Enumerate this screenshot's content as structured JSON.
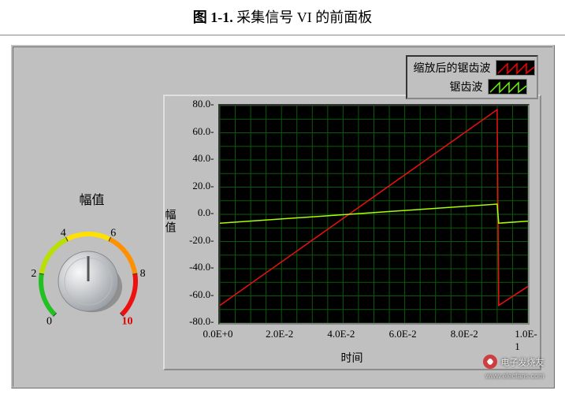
{
  "figure_caption": {
    "prefix": "图 1-1.",
    "text": " 采集信号 VI 的前面板"
  },
  "knob": {
    "label": "幅值",
    "min": 0,
    "max": 10,
    "ticks": [
      0,
      2,
      4,
      6,
      8,
      10
    ],
    "value": 5,
    "start_angle": -225,
    "end_angle": 45,
    "face_light": "#f8f8f8",
    "face_dark": "#9aa0a6",
    "arc_colors": [
      "#22c122",
      "#b8e000",
      "#ffe000",
      "#ff9000",
      "#ee1010"
    ],
    "tick_label_fontsize": 14
  },
  "legend": {
    "items": [
      {
        "label": "缩放后的锯齿波",
        "color": "#ff0000",
        "style": "sawtooth"
      },
      {
        "label": "锯齿波",
        "color": "#66ff00",
        "style": "sawtooth"
      }
    ]
  },
  "chart": {
    "type": "line",
    "xlabel": "时间",
    "ylabel": "幅值",
    "background_color": "#000000",
    "grid_color": "#0b5a0b",
    "grid_rows": 16,
    "grid_cols": 20,
    "label_fontsize": 14,
    "tick_fontsize": 13,
    "xlim": [
      0,
      0.1
    ],
    "ylim": [
      -80,
      80
    ],
    "xticks": [
      {
        "v": 0.0,
        "label": "0.0E+0"
      },
      {
        "v": 0.02,
        "label": "2.0E-2"
      },
      {
        "v": 0.04,
        "label": "4.0E-2"
      },
      {
        "v": 0.06,
        "label": "6.0E-2"
      },
      {
        "v": 0.08,
        "label": "8.0E-2"
      },
      {
        "v": 0.1,
        "label": "1.0E-1"
      }
    ],
    "yticks": [
      -80,
      -60,
      -40,
      -20,
      0,
      20,
      40,
      60,
      80
    ],
    "ytick_format": "0.0-",
    "series": [
      {
        "name": "缩放后的锯齿波",
        "color": "#ee1010",
        "width": 1.5,
        "points": [
          [
            0.0,
            -67
          ],
          [
            0.09,
            77
          ],
          [
            0.0905,
            -67
          ],
          [
            0.1,
            -53
          ]
        ]
      },
      {
        "name": "锯齿波",
        "color": "#aaff00",
        "width": 1.5,
        "points": [
          [
            0.0,
            -6.5
          ],
          [
            0.09,
            7.5
          ],
          [
            0.0905,
            -6.5
          ],
          [
            0.1,
            -5.0
          ]
        ]
      }
    ]
  },
  "watermark": {
    "site": "电子发烧友",
    "url": "www.elecfans.com"
  }
}
